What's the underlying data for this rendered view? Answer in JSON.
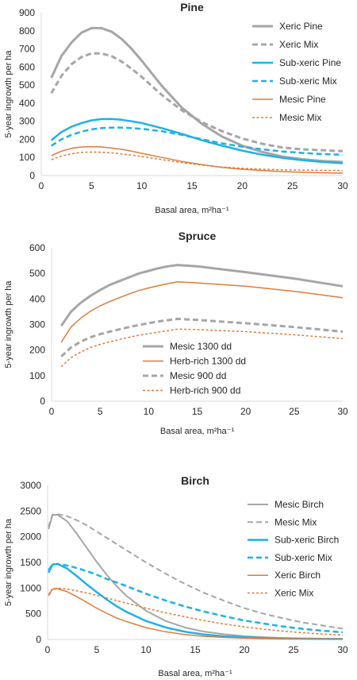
{
  "chart_data": [
    {
      "type": "line",
      "title": "Pine",
      "xlabel": "Basal area, m²ha⁻¹",
      "ylabel": "5-year ingrowth per ha",
      "xlim": [
        0,
        30
      ],
      "ylim": [
        0,
        900
      ],
      "xticks": [
        0,
        5,
        10,
        15,
        20,
        25,
        30
      ],
      "yticks": [
        0,
        100,
        200,
        300,
        400,
        500,
        600,
        700,
        800,
        900
      ],
      "grid": false,
      "legend": "top-right",
      "x": [
        1,
        2,
        3,
        4,
        5,
        6,
        7,
        8,
        9,
        10,
        12,
        14,
        16,
        18,
        20,
        22,
        24,
        26,
        28,
        30
      ],
      "series": [
        {
          "name": "Xeric Pine",
          "color": "#a6a6a6",
          "dash": "solid",
          "width": 3,
          "values": [
            540,
            660,
            735,
            790,
            815,
            815,
            795,
            755,
            700,
            635,
            495,
            375,
            285,
            215,
            165,
            130,
            105,
            90,
            80,
            75
          ]
        },
        {
          "name": "Xeric Mix",
          "color": "#a6a6a6",
          "dash": "dashed",
          "width": 3,
          "values": [
            455,
            550,
            615,
            655,
            675,
            675,
            660,
            630,
            590,
            545,
            445,
            360,
            295,
            245,
            205,
            175,
            155,
            145,
            140,
            135
          ]
        },
        {
          "name": "Sub-xeric Pine",
          "color": "#1fb1e6",
          "dash": "solid",
          "width": 2.5,
          "values": [
            195,
            240,
            270,
            290,
            305,
            312,
            313,
            308,
            300,
            290,
            262,
            230,
            195,
            165,
            138,
            115,
            98,
            85,
            75,
            68
          ]
        },
        {
          "name": "Sub-xeric Mix",
          "color": "#1fb1e6",
          "dash": "dashed",
          "width": 2.5,
          "values": [
            165,
            200,
            225,
            243,
            255,
            262,
            265,
            265,
            262,
            258,
            245,
            225,
            200,
            178,
            160,
            145,
            133,
            125,
            119,
            115
          ]
        },
        {
          "name": "Mesic Pine",
          "color": "#e07b39",
          "dash": "solid",
          "width": 1.5,
          "values": [
            110,
            135,
            150,
            158,
            160,
            158,
            152,
            145,
            135,
            123,
            100,
            78,
            60,
            45,
            35,
            28,
            22,
            18,
            15,
            13
          ]
        },
        {
          "name": "Mesic Mix",
          "color": "#e07b39",
          "dash": "dotted",
          "width": 1.5,
          "values": [
            88,
            108,
            120,
            128,
            130,
            129,
            125,
            120,
            113,
            105,
            88,
            72,
            58,
            47,
            40,
            35,
            32,
            30,
            29,
            28
          ]
        }
      ]
    },
    {
      "type": "line",
      "title": "Spruce",
      "xlabel": "Basal area, m²ha⁻¹",
      "ylabel": "5-year ingrowth per ha",
      "xlim": [
        0,
        30
      ],
      "ylim": [
        0,
        600
      ],
      "xticks": [
        0,
        5,
        10,
        15,
        20,
        25,
        30
      ],
      "yticks": [
        0,
        100,
        200,
        300,
        400,
        500,
        600
      ],
      "grid": false,
      "legend": "bottom-left",
      "x": [
        1,
        2,
        3,
        4,
        5,
        6,
        7,
        8,
        9,
        10,
        11,
        12,
        13,
        15,
        20,
        25,
        30
      ],
      "series": [
        {
          "name": "Mesic 1300 dd",
          "color": "#a6a6a6",
          "dash": "solid",
          "width": 3,
          "values": [
            295,
            350,
            385,
            412,
            435,
            455,
            470,
            485,
            500,
            510,
            520,
            528,
            533,
            528,
            505,
            480,
            450
          ]
        },
        {
          "name": "Herb-rich 1300 dd",
          "color": "#e07b39",
          "dash": "solid",
          "width": 1.5,
          "values": [
            230,
            290,
            325,
            352,
            373,
            390,
            405,
            420,
            433,
            443,
            452,
            460,
            467,
            463,
            450,
            430,
            405
          ]
        },
        {
          "name": "Mesic 900 dd",
          "color": "#a6a6a6",
          "dash": "dashed",
          "width": 3,
          "values": [
            175,
            210,
            233,
            250,
            262,
            272,
            281,
            290,
            298,
            305,
            312,
            317,
            322,
            318,
            305,
            290,
            272
          ]
        },
        {
          "name": "Herb-rich 900 dd",
          "color": "#e07b39",
          "dash": "dotted",
          "width": 1.5,
          "values": [
            135,
            170,
            192,
            210,
            222,
            232,
            242,
            250,
            258,
            264,
            270,
            276,
            282,
            280,
            272,
            260,
            245
          ]
        }
      ]
    },
    {
      "type": "line",
      "title": "Birch",
      "xlabel": "Basal area, m²ha⁻¹",
      "ylabel": "5-year ingrowth per ha",
      "xlim": [
        0,
        30
      ],
      "ylim": [
        0,
        3000
      ],
      "xticks": [
        0,
        5,
        10,
        15,
        20,
        25,
        30
      ],
      "yticks": [
        0,
        500,
        1000,
        1500,
        2000,
        2500,
        3000
      ],
      "grid": false,
      "legend": "top-right",
      "x": [
        0.1,
        0.5,
        1,
        2,
        3,
        4,
        5,
        6,
        7,
        8,
        10,
        12,
        14,
        16,
        18,
        20,
        22,
        24,
        26,
        28,
        30
      ],
      "series": [
        {
          "name": "Mesic Birch",
          "color": "#a6a6a6",
          "dash": "solid",
          "width": 2,
          "values": [
            2150,
            2420,
            2430,
            2300,
            2050,
            1780,
            1510,
            1260,
            1040,
            850,
            560,
            360,
            230,
            150,
            100,
            65,
            45,
            30,
            20,
            15,
            10
          ]
        },
        {
          "name": "Mesic Mix",
          "color": "#a6a6a6",
          "dash": "dashed",
          "width": 2,
          "values": [
            2200,
            2430,
            2440,
            2400,
            2320,
            2220,
            2100,
            1980,
            1860,
            1740,
            1500,
            1280,
            1080,
            900,
            750,
            610,
            500,
            410,
            330,
            270,
            210
          ]
        },
        {
          "name": "Sub-xeric Birch",
          "color": "#1fb1e6",
          "dash": "solid",
          "width": 2.5,
          "values": [
            1300,
            1460,
            1470,
            1380,
            1230,
            1070,
            920,
            780,
            650,
            540,
            360,
            235,
            150,
            95,
            60,
            40,
            28,
            20,
            15,
            12,
            10
          ]
        },
        {
          "name": "Sub-xeric Mix",
          "color": "#1fb1e6",
          "dash": "dashed",
          "width": 2.5,
          "values": [
            1350,
            1460,
            1470,
            1440,
            1390,
            1330,
            1260,
            1180,
            1110,
            1040,
            890,
            760,
            640,
            540,
            450,
            370,
            310,
            250,
            205,
            170,
            140
          ]
        },
        {
          "name": "Xeric Birch",
          "color": "#e07b39",
          "dash": "solid",
          "width": 1.5,
          "values": [
            850,
            980,
            990,
            930,
            830,
            720,
            610,
            510,
            420,
            350,
            230,
            150,
            95,
            60,
            40,
            28,
            20,
            15,
            12,
            10,
            8
          ]
        },
        {
          "name": "Xeric Mix",
          "color": "#e07b39",
          "dash": "dotted",
          "width": 1.5,
          "values": [
            880,
            990,
            1000,
            980,
            945,
            905,
            860,
            810,
            760,
            710,
            610,
            520,
            440,
            365,
            300,
            245,
            200,
            162,
            130,
            105,
            85
          ]
        }
      ]
    }
  ]
}
